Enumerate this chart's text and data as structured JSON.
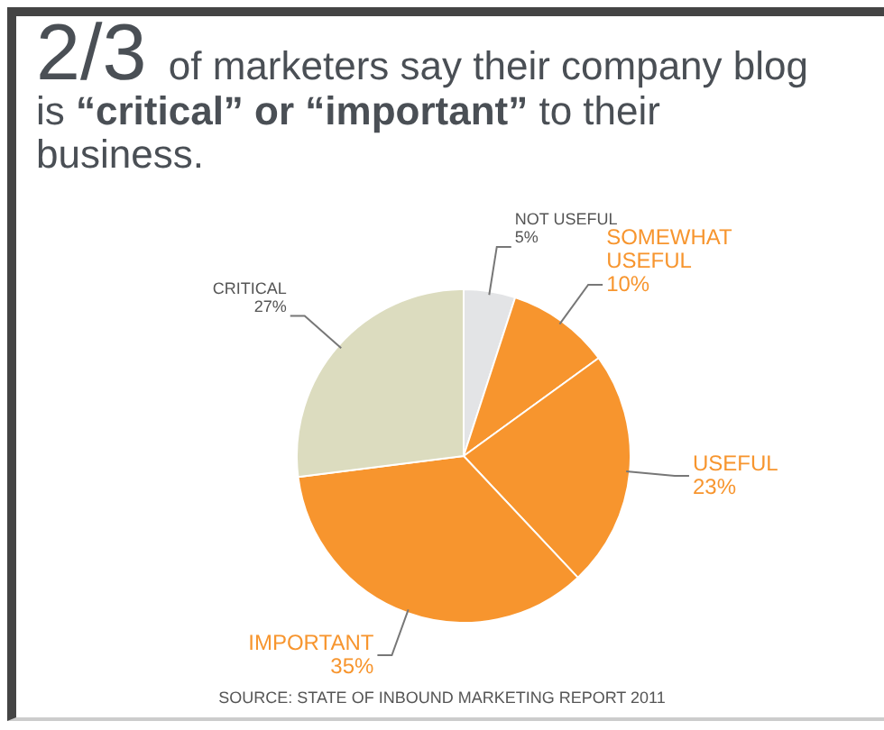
{
  "chart_data": {
    "type": "pie",
    "title": "2/3 of marketers say their company blog is “critical” or “important” to their business.",
    "categories": [
      "NOT USEFUL",
      "SOMEWHAT USEFUL",
      "USEFUL",
      "IMPORTANT",
      "CRITICAL"
    ],
    "values": [
      5,
      10,
      23,
      35,
      27
    ],
    "colors": [
      "#e3e4e6",
      "#f7952e",
      "#f7952e",
      "#f7952e",
      "#dcdcbf"
    ],
    "value_labels": [
      "5%",
      "10%",
      "23%",
      "35%",
      "27%"
    ],
    "annotations": [
      "SOURCE: STATE OF INBOUND MARKETING REPORT 2011"
    ],
    "legend": false
  }
}
